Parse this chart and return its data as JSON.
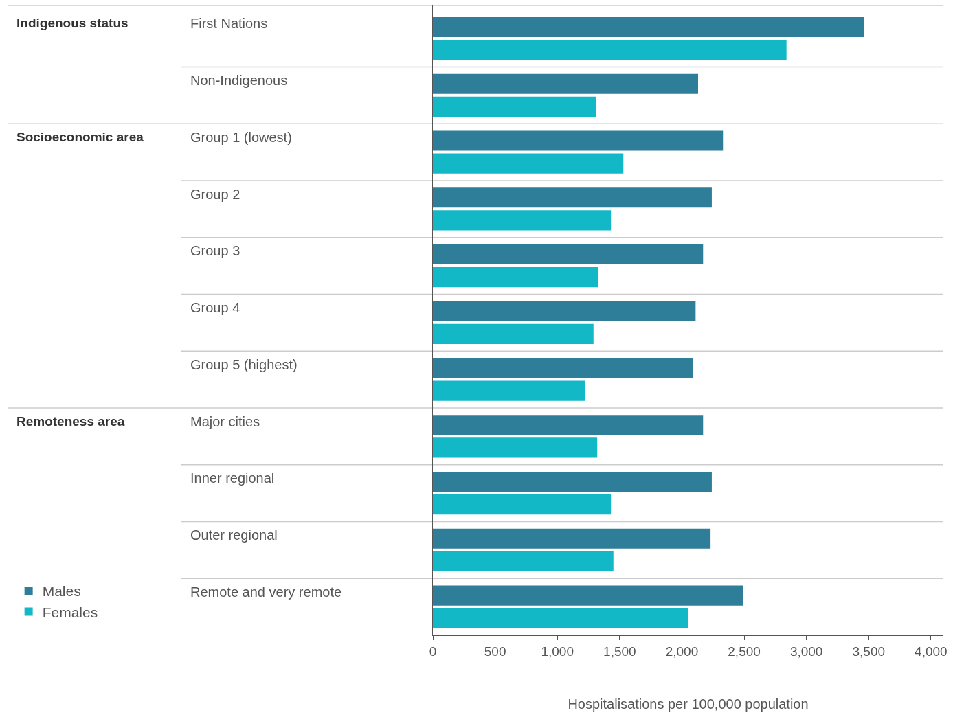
{
  "chart_data": {
    "type": "bar",
    "orientation": "horizontal",
    "categories": [
      "First Nations",
      "Non-Indigenous",
      "Group 1 (lowest)",
      "Group 2",
      "Group 3",
      "Group 4",
      "Group 5 (highest)",
      "Major cities",
      "Inner regional",
      "Outer regional",
      "Remote and very remote"
    ],
    "series": [
      {
        "name": "Males",
        "color": "#2e7d99",
        "values": [
          3460,
          2130,
          2330,
          2240,
          2170,
          2110,
          2090,
          2170,
          2240,
          2230,
          2490
        ]
      },
      {
        "name": "Females",
        "color": "#13b8c6",
        "values": [
          2840,
          1310,
          1530,
          1430,
          1330,
          1290,
          1220,
          1320,
          1430,
          1450,
          2050
        ]
      }
    ],
    "annotations": [
      "Indigenous status",
      "Socioeconomic area",
      "Remoteness area"
    ],
    "xlabel": "Hospitalisations per 100,000 population",
    "xlim": [
      0,
      4100
    ],
    "xticks": [
      0,
      500,
      {
        "value": 1000,
        "label": "1,000"
      },
      {
        "value": 1500,
        "label": "1,500"
      },
      {
        "value": 2000,
        "label": "2,000"
      },
      {
        "value": 2500,
        "label": "2,500"
      },
      {
        "value": 3000,
        "label": "3,000"
      },
      {
        "value": 3500,
        "label": "3,500"
      },
      {
        "value": 4000,
        "label": "4,000"
      }
    ],
    "legend": "bottom left"
  }
}
